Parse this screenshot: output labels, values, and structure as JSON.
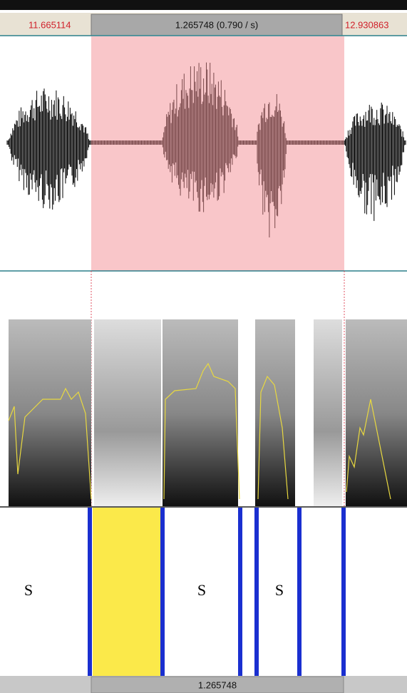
{
  "header": {
    "start_time": "11.665114",
    "selection": "1.265748 (0.790 / s)",
    "end_time": "12.930863"
  },
  "tier": {
    "labels": [
      "S",
      "S",
      "S"
    ]
  },
  "footer": {
    "selection_duration": "1.265748"
  }
}
